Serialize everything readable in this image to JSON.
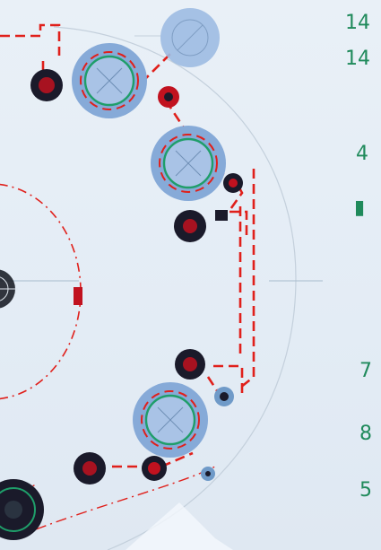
{
  "colors": {
    "background": "#e6eef6",
    "outline_gray": "#b9c6d3",
    "centerline": "#9fb2c4",
    "pulley_fill": "#8fb2de",
    "pulley_ring": "#1f9e6a",
    "belt_red": "#e0201b",
    "hub_dark": "#1a1a2a",
    "hub_red": "#c1121f",
    "label_green": "#1f8a5b"
  },
  "labels": {
    "l1": "14",
    "l2": "14",
    "l3": "4",
    "l4": "▮",
    "l5": "7",
    "l6": "8",
    "l7": "5"
  }
}
